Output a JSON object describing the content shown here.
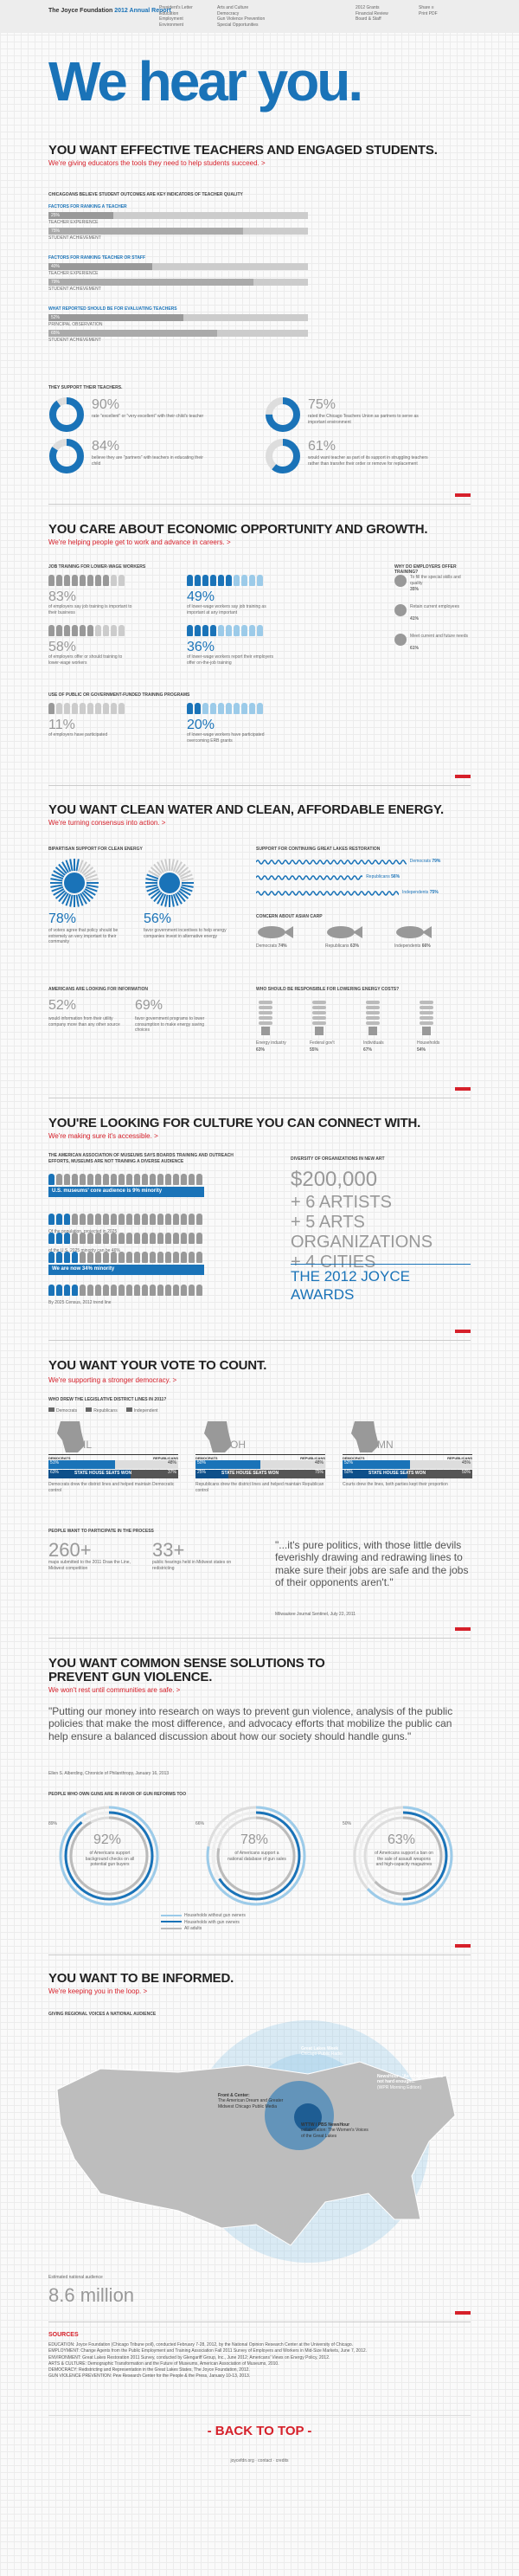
{
  "header": {
    "logo_a": "The Joyce Foundation",
    "logo_b": "2012 Annual Report",
    "nav_col1": [
      "President's Letter",
      "Education",
      "Employment",
      "Environment"
    ],
    "nav_col2": [
      "Arts and Culture",
      "Democracy",
      "Gun Violence Prevention",
      "Special Opportunities"
    ],
    "nav_col3": [
      "2012 Grants",
      "Financial Review",
      "Board & Staff"
    ],
    "nav_col4": [
      "Share ≡",
      "Print PDF"
    ]
  },
  "hero": {
    "title": "We hear you."
  },
  "education": {
    "headline": "YOU WANT EFFECTIVE TEACHERS AND ENGAGED STUDENTS.",
    "sub": "We're giving educators the tools they need to help students succeed. >",
    "chart_title": "CHICAGOANS BELIEVE STUDENT OUTCOMES ARE KEY INDICATORS OF TEACHER QUALITY",
    "groups": [
      {
        "title": "FACTORS FOR RANKING A TEACHER",
        "bars": [
          {
            "label": "TEACHER EXPERIENCE",
            "pct": "25%",
            "v": 25
          },
          {
            "label": "STUDENT ACHIEVEMENT",
            "pct": "75%",
            "v": 75
          }
        ]
      },
      {
        "title": "FACTORS FOR RANKING TEACHER OR STAFF",
        "bars": [
          {
            "label": "TEACHER EXPERIENCE",
            "pct": "40%",
            "v": 40
          },
          {
            "label": "STUDENT ACHIEVEMENT",
            "pct": "79%",
            "v": 79
          }
        ]
      },
      {
        "title": "WHAT REPORTED SHOULD BE FOR EVALUATING TEACHERS",
        "bars": [
          {
            "label": "PRINCIPAL OBSERVATION",
            "pct": "52%",
            "v": 52
          },
          {
            "label": "STUDENT ACHIEVEMENT",
            "pct": "65%",
            "v": 65
          }
        ]
      }
    ],
    "support_title": "THEY SUPPORT THEIR TEACHERS.",
    "donuts": [
      {
        "pct": "90%",
        "v": 90,
        "text": "rate \"excellent\" or \"very excellent\" with their child's teacher"
      },
      {
        "pct": "75%",
        "v": 75,
        "text": "rated the Chicago Teachers Union as partners to serve as important environment"
      },
      {
        "pct": "84%",
        "v": 84,
        "text": "believe they are \"partners\" with teachers in educating their child"
      },
      {
        "pct": "61%",
        "v": 61,
        "text": "would want teacher as part of its support in struggling teachers rather than transfer their order or remove for replacement"
      }
    ]
  },
  "employment": {
    "headline": "YOU CARE ABOUT ECONOMIC OPPORTUNITY AND GROWTH.",
    "sub": "We're helping people get to work and advance in careers. >",
    "c1_title": "JOB TRAINING FOR LOWER-WAGE WORKERS",
    "s1": [
      {
        "pct": "83%",
        "text": "of employers say job training is important to their business"
      },
      {
        "pct": "58%",
        "text": "of employers offer or should training to lower-wage workers"
      }
    ],
    "s1b": [
      {
        "pct": "49%",
        "text": "of lower-wage workers say job training as important at any important"
      },
      {
        "pct": "36%",
        "text": "of lower-wage workers report their employers offer on-the-job training"
      }
    ],
    "c2_title": "USE OF PUBLIC OR GOVERNMENT-FUNDED TRAINING PROGRAMS",
    "s2a": {
      "pct": "11%",
      "text": "of employers have participated"
    },
    "s2b": {
      "pct": "20%",
      "text": "of lower-wage workers have participated overcoming ERB grants"
    },
    "why_title": "WHY DO EMPLOYERS OFFER TRAINING?",
    "why": [
      {
        "label": "To fill the special skills and quality",
        "pct": "35%"
      },
      {
        "label": "Retain current employees",
        "pct": "41%"
      },
      {
        "label": "Meet current and future needs",
        "pct": "61%"
      }
    ]
  },
  "environment": {
    "headline": "YOU WANT CLEAN WATER AND CLEAN, AFFORDABLE ENERGY.",
    "sub": "We're turning consensus into action. >",
    "c1_title": "BIPARTISAN SUPPORT FOR CLEAN ENERGY",
    "burst": [
      {
        "pct": "78%",
        "text": "of voters agree that policy should be extremely an very important to their community"
      },
      {
        "pct": "56%",
        "text": "favor government incentives to help energy companies invest in alternative energy"
      }
    ],
    "c2_title": "SUPPORT FOR CONTINUING GREAT LAKES RESTORATION",
    "waves": [
      {
        "label": "Democrats",
        "pct": "79%",
        "v": 79
      },
      {
        "label": "Republicans",
        "pct": "56%",
        "v": 56
      },
      {
        "label": "Independents",
        "pct": "75%",
        "v": 75
      }
    ],
    "carp_title": "CONCERN ABOUT ASIAN CARP",
    "carp": [
      {
        "label": "Democrats",
        "pct": "74%"
      },
      {
        "label": "Republicans",
        "pct": "63%"
      },
      {
        "label": "Independents",
        "pct": "66%"
      }
    ],
    "c3_title": "AMERICANS ARE LOOKING FOR INFORMATION",
    "info": [
      {
        "pct": "52%",
        "text": "would information from their utility company more than any other source"
      },
      {
        "pct": "69%",
        "text": "favor government programs to lower consumption to make energy saving choices"
      }
    ],
    "c4_title": "WHO SHOULD BE RESPONSIBLE FOR LOWERING ENERGY COSTS?",
    "bulbs": [
      {
        "label": "Energy industry",
        "pct": "63%"
      },
      {
        "label": "Federal gov't",
        "pct": "55%"
      },
      {
        "label": "Individuals",
        "pct": "67%"
      },
      {
        "label": "Households",
        "pct": "54%"
      }
    ]
  },
  "culture": {
    "headline": "YOU'RE LOOKING FOR CULTURE YOU CAN CONNECT WITH.",
    "sub": "We're making sure it's accessible. >",
    "c1_title": "THE AMERICAN ASSOCIATION OF MUSEUMS SAYS BOARDS TRAINING AND OUTREACH EFFORTS, MUSEUMS ARE NOT TRAINING A DIVERSE AUDIENCE",
    "band1": "U.S. museums' core audience is 9% minority",
    "band2": "We are now 34% minority",
    "note1": "Of the population, projected in 2025",
    "note2": "of the U.S. 2025 minority can be 46%",
    "note3": "By 2025 Census, 2012 trend line",
    "c2_title": "DIVERSITY OF ORGANIZATIONS IN NEW ART",
    "amount": "$200,000",
    "list": [
      "+ 6 ARTISTS",
      "+ 5 ARTS ORGANIZATIONS",
      "+ 4 CITIES"
    ],
    "awards": "THE 2012 JOYCE AWARDS"
  },
  "democracy": {
    "headline": "YOU WANT YOUR VOTE TO COUNT.",
    "sub": "We're supporting a stronger democracy. >",
    "c1_title": "WHO DREW THE LEGISLATIVE DISTRICT LINES IN 2011?",
    "legend": [
      "Democrats",
      "Republicans",
      "Independent"
    ],
    "states": [
      {
        "abbr": "IL",
        "dem_pct": "51%",
        "rep_pct": "48%",
        "dem_seats": "63%",
        "rep_seats": "37%",
        "note": "Democrats drew the district lines and helped maintain Democratic control"
      },
      {
        "abbr": "OH",
        "dem_pct": "50%",
        "rep_pct": "48%",
        "dem_seats": "25%",
        "rep_seats": "75%",
        "note": "Republicans drew the district lines and helped maintain Republican control"
      },
      {
        "abbr": "MN",
        "dem_pct": "52%",
        "rep_pct": "45%",
        "dem_seats": "50%",
        "rep_seats": "50%",
        "note": "Courts drew the lines, both parties kept their proportion"
      }
    ],
    "bar_head": [
      "DEMOCRATS",
      "REPUBLICANS"
    ],
    "bar_row2": "STATE HOUSE SEATS WON",
    "c2_title": "PEOPLE WANT TO PARTICIPATE IN THE PROCESS",
    "stat1": {
      "num": "260+",
      "text": "maps submitted to the 2011 Draw the Line, Midwest competition"
    },
    "stat2": {
      "num": "33+",
      "text": "public hearings held in Midwest states on redistricting"
    },
    "quote": "\"...it's pure politics, with those little devils feverishly drawing and redrawing lines to make sure their jobs are safe and the jobs of their opponents aren't.\"",
    "quote_src": "Milwaukee Journal Sentinel, July 22, 2011"
  },
  "gun": {
    "headline": "YOU WANT COMMON SENSE SOLUTIONS TO PREVENT GUN VIOLENCE.",
    "sub": "We won't rest until communities are safe. >",
    "quote": "\"Putting our money into research on ways to prevent gun violence, analysis of the public policies that make the most difference, and advocacy efforts that mobilize the public can help ensure a balanced discussion about how our society should handle guns.\"",
    "quote_src": "Ellen S. Alberding, Chronicle of Philanthropy, January 16, 2013",
    "c1_title": "PEOPLE WHO OWN GUNS ARE IN FAVOR OF GUN REFORMS TOO",
    "rings": [
      {
        "pct": "92%",
        "v": 92,
        "inner": 89,
        "text": "of Americans support background checks on all potential gun buyers",
        "side": "89%"
      },
      {
        "pct": "78%",
        "v": 78,
        "inner": 66,
        "text": "of Americans support a national database of gun sales",
        "side": "66%"
      },
      {
        "pct": "63%",
        "v": 63,
        "inner": 50,
        "text": "of Americans support a ban on the sale of assault weapons and high-capacity magazines",
        "side": "50%"
      }
    ],
    "legend": [
      "Households without gun owners",
      "Households with gun owners",
      "All adults"
    ]
  },
  "informed": {
    "headline": "YOU WANT TO BE INFORMED.",
    "sub": "We're keeping you in the loop. >",
    "c1_title": "GIVING REGIONAL VOICES A NATIONAL AUDIENCE",
    "labels": [
      {
        "t": "Great Lakes Week",
        "d": "Chicago Public Radio"
      },
      {
        "t": "Front & Center:",
        "d": "The American Dream and Greater Midwest Chicago Public Media"
      },
      {
        "t": "WTTW / PBS NewsHour",
        "d": "collaboration: The Women's Voices of the Great Lakes"
      },
      {
        "t": "NewsHour - 'As if high school is not hard enough...'",
        "d": "(WPR Morning Edition)"
      }
    ],
    "audience_label": "Estimated national audience",
    "audience": "8.6 million"
  },
  "sources": {
    "title": "SOURCES",
    "lines": [
      "EDUCATION: Joyce Foundation (Chicago Tribune poll), conducted February 7-28, 2012, by the National Opinion Research Center at the University of Chicago.",
      "EMPLOYMENT: Change Agents from the Public Employment and Training Association Fall 2011 Survey of Employers and Workers in Mid-Size Markets, June 7, 2012.",
      "ENVIRONMENT: Great Lakes Restoration 2011 Survey, conducted by Glengariff Group, Inc., June 2012; Americans' Views on Energy Policy, 2012.",
      "ARTS & CULTURE: Demographic Transformation and the Future of Museums, American Association of Museums, 2010.",
      "DEMOCRACY: Redistricting and Representation in the Great Lakes States, The Joyce Foundation, 2012.",
      "GUN VIOLENCE PREVENTION: Pew Research Center for the People & the Press, January 10-13, 2013."
    ]
  },
  "footer": {
    "back_to_top": "- BACK TO TOP -",
    "links": "joycefdn.org  ·  contact  ·  credits"
  },
  "colors": {
    "blue": "#1a73b8",
    "light_blue": "#9ccbe9",
    "red": "#d6202a",
    "grey": "#999"
  }
}
